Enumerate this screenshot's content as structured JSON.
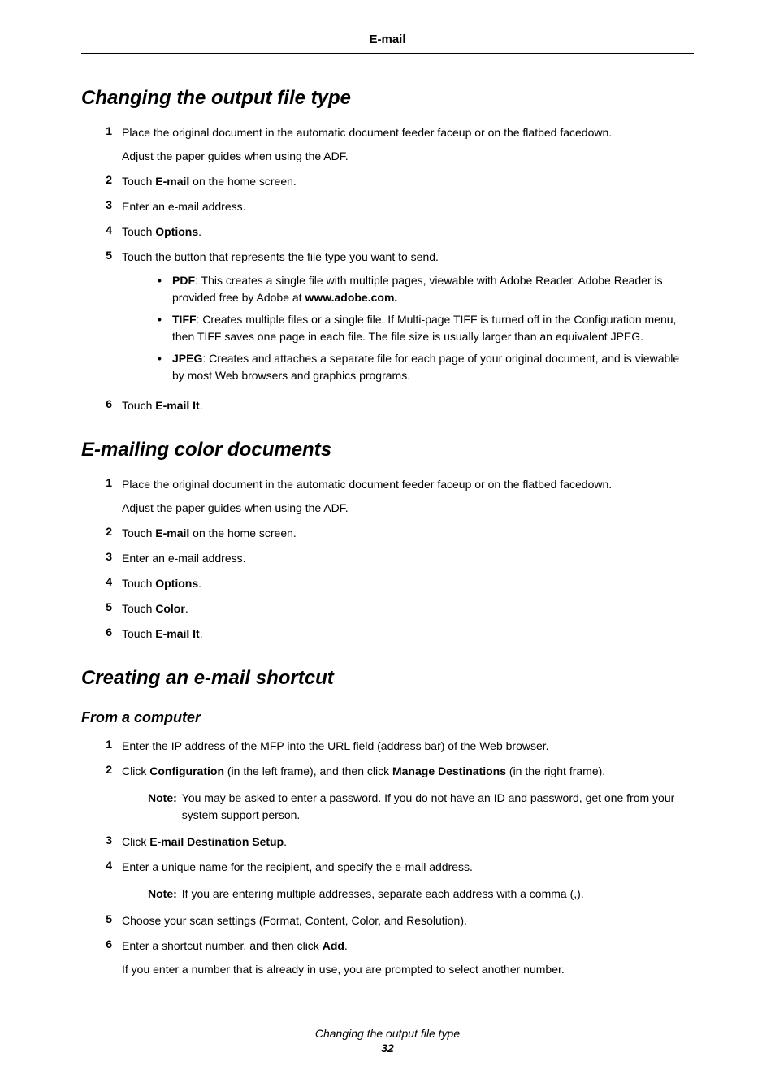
{
  "header": {
    "title": "E-mail"
  },
  "sections": {
    "s1": {
      "heading": "Changing the output file type",
      "step1_num": "1",
      "step1_p1": "Place the original document in the automatic document feeder faceup or on the flatbed facedown.",
      "step1_p2": "Adjust the paper guides when using the ADF.",
      "step2_num": "2",
      "step2_pre": "Touch ",
      "step2_bold": "E-mail",
      "step2_post": " on the home screen.",
      "step3_num": "3",
      "step3_text": "Enter an e-mail address.",
      "step4_num": "4",
      "step4_pre": "Touch ",
      "step4_bold": "Options",
      "step4_post": ".",
      "step5_num": "5",
      "step5_text": "Touch the button that represents the file type you want to send.",
      "bullet1_bold": "PDF",
      "bullet1_text": ": This creates a single file with multiple pages, viewable with Adobe Reader. Adobe Reader is provided free by Adobe at ",
      "bullet1_bold2": "www.adobe.com.",
      "bullet2_bold": "TIFF",
      "bullet2_text": ": Creates multiple files or a single file. If Multi-page TIFF is turned off in the Configuration menu, then TIFF saves one page in each file. The file size is usually larger than an equivalent JPEG.",
      "bullet3_bold": "JPEG",
      "bullet3_text": ": Creates and attaches a separate file for each page of your original document, and is viewable by most Web browsers and graphics programs.",
      "step6_num": "6",
      "step6_pre": "Touch ",
      "step6_bold": "E-mail It",
      "step6_post": "."
    },
    "s2": {
      "heading": "E-mailing color documents",
      "step1_num": "1",
      "step1_p1": "Place the original document in the automatic document feeder faceup or on the flatbed facedown.",
      "step1_p2": "Adjust the paper guides when using the ADF.",
      "step2_num": "2",
      "step2_pre": "Touch ",
      "step2_bold": "E-mail",
      "step2_post": " on the home screen.",
      "step3_num": "3",
      "step3_text": "Enter an e-mail address.",
      "step4_num": "4",
      "step4_pre": "Touch ",
      "step4_bold": "Options",
      "step4_post": ".",
      "step5_num": "5",
      "step5_pre": "Touch ",
      "step5_bold": "Color",
      "step5_post": ".",
      "step6_num": "6",
      "step6_pre": "Touch ",
      "step6_bold": "E-mail It",
      "step6_post": "."
    },
    "s3": {
      "heading": "Creating an e-mail shortcut",
      "sub1": "From a computer",
      "step1_num": "1",
      "step1_text": "Enter the IP address of the MFP into the URL field (address bar) of the Web browser.",
      "step2_num": "2",
      "step2_pre": "Click ",
      "step2_bold1": "Configuration",
      "step2_mid": " (in the left frame), and then click ",
      "step2_bold2": "Manage Destinations",
      "step2_post": " (in the right frame).",
      "note1_label": "Note:",
      "note1_text": "You may be asked to enter a password. If you do not have an ID and password, get one from your system support person.",
      "step3_num": "3",
      "step3_pre": "Click ",
      "step3_bold": "E-mail Destination Setup",
      "step3_post": ".",
      "step4_num": "4",
      "step4_text": "Enter a unique name for the recipient, and specify the e-mail address.",
      "note2_label": "Note:",
      "note2_text": "If you are entering multiple addresses, separate each address with a comma (,).",
      "step5_num": "5",
      "step5_text": "Choose your scan settings (Format, Content, Color, and Resolution).",
      "step6_num": "6",
      "step6_pre": "Enter a shortcut number, and then click ",
      "step6_bold": "Add",
      "step6_post": ".",
      "step6_p2": "If you enter a number that is already in use, you are prompted to select another number."
    }
  },
  "footer": {
    "title": "Changing the output file type",
    "pagenum": "32"
  }
}
